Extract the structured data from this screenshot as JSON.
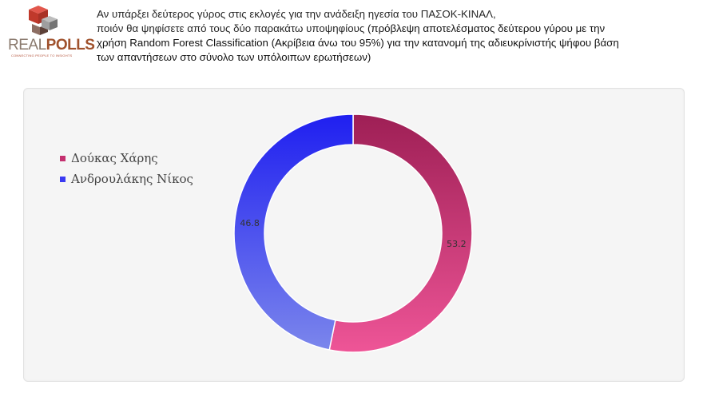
{
  "logo": {
    "real": "REAL",
    "polls": "POLLS",
    "tagline": "CONNECTING PEOPLE TO INSIGHTS"
  },
  "headline": {
    "line1": "Αν υπάρξει δεύτερος γύρος στις εκλογές για την ανάδειξη ηγεσία του ΠΑΣΟΚ-ΚΙΝΑΛ,",
    "line2_normal": "ποιόν θα ψηφίσετε από τους δύο παρακάτω υποψηφίους ",
    "line2_bold": "(πρόβλεψη αποτελέσματος δεύτερου γύρου με την",
    "line3": "χρήση Random Forest Classification (Ακρίβεια άνω του 95%) για την κατανομή της αδιευκρίνιστής ψήφου βάση",
    "line4": "των απαντήσεων στο σύνολο των  υπόλοιπων ερωτήσεων)"
  },
  "colors": {
    "doukas_dark": "#9e1f55",
    "doukas_light": "#ee5597",
    "androulakis_dark": "#1f1ff0",
    "androulakis_light": "#7b86ec"
  },
  "chart_data": {
    "type": "pie",
    "variant": "donut",
    "legend_position": "left",
    "series": [
      {
        "name": "Δούκας Χάρης",
        "value": 53.2,
        "label": "53.2",
        "color": "#c4306f"
      },
      {
        "name": "Ανδρουλάκης Νίκος",
        "value": 46.8,
        "label": "46.8",
        "color": "#3a3af2"
      }
    ]
  }
}
